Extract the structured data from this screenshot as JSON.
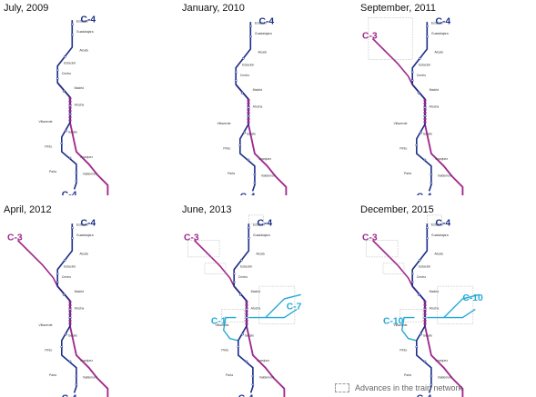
{
  "panels": [
    {
      "title": "July, 2009",
      "stage": 0
    },
    {
      "title": "January, 2010",
      "stage": 1
    },
    {
      "title": "September, 2011",
      "stage": 2
    },
    {
      "title": "April, 2012",
      "stage": 3
    },
    {
      "title": "June, 2013",
      "stage": 4
    },
    {
      "title": "December, 2015",
      "stage": 5
    }
  ],
  "lines": {
    "c3": {
      "label": "C-3",
      "color": "#a0288c"
    },
    "c4": {
      "label": "C-4",
      "color": "#1c2f8a"
    },
    "c10": {
      "label": "C-10",
      "color": "#25a9d6"
    },
    "c7": {
      "label": "C-7",
      "color": "#25a9d6"
    },
    "c1": {
      "label": "C-1",
      "color": "#25a9d6"
    }
  },
  "legend": {
    "text": "Advances in the train network"
  }
}
